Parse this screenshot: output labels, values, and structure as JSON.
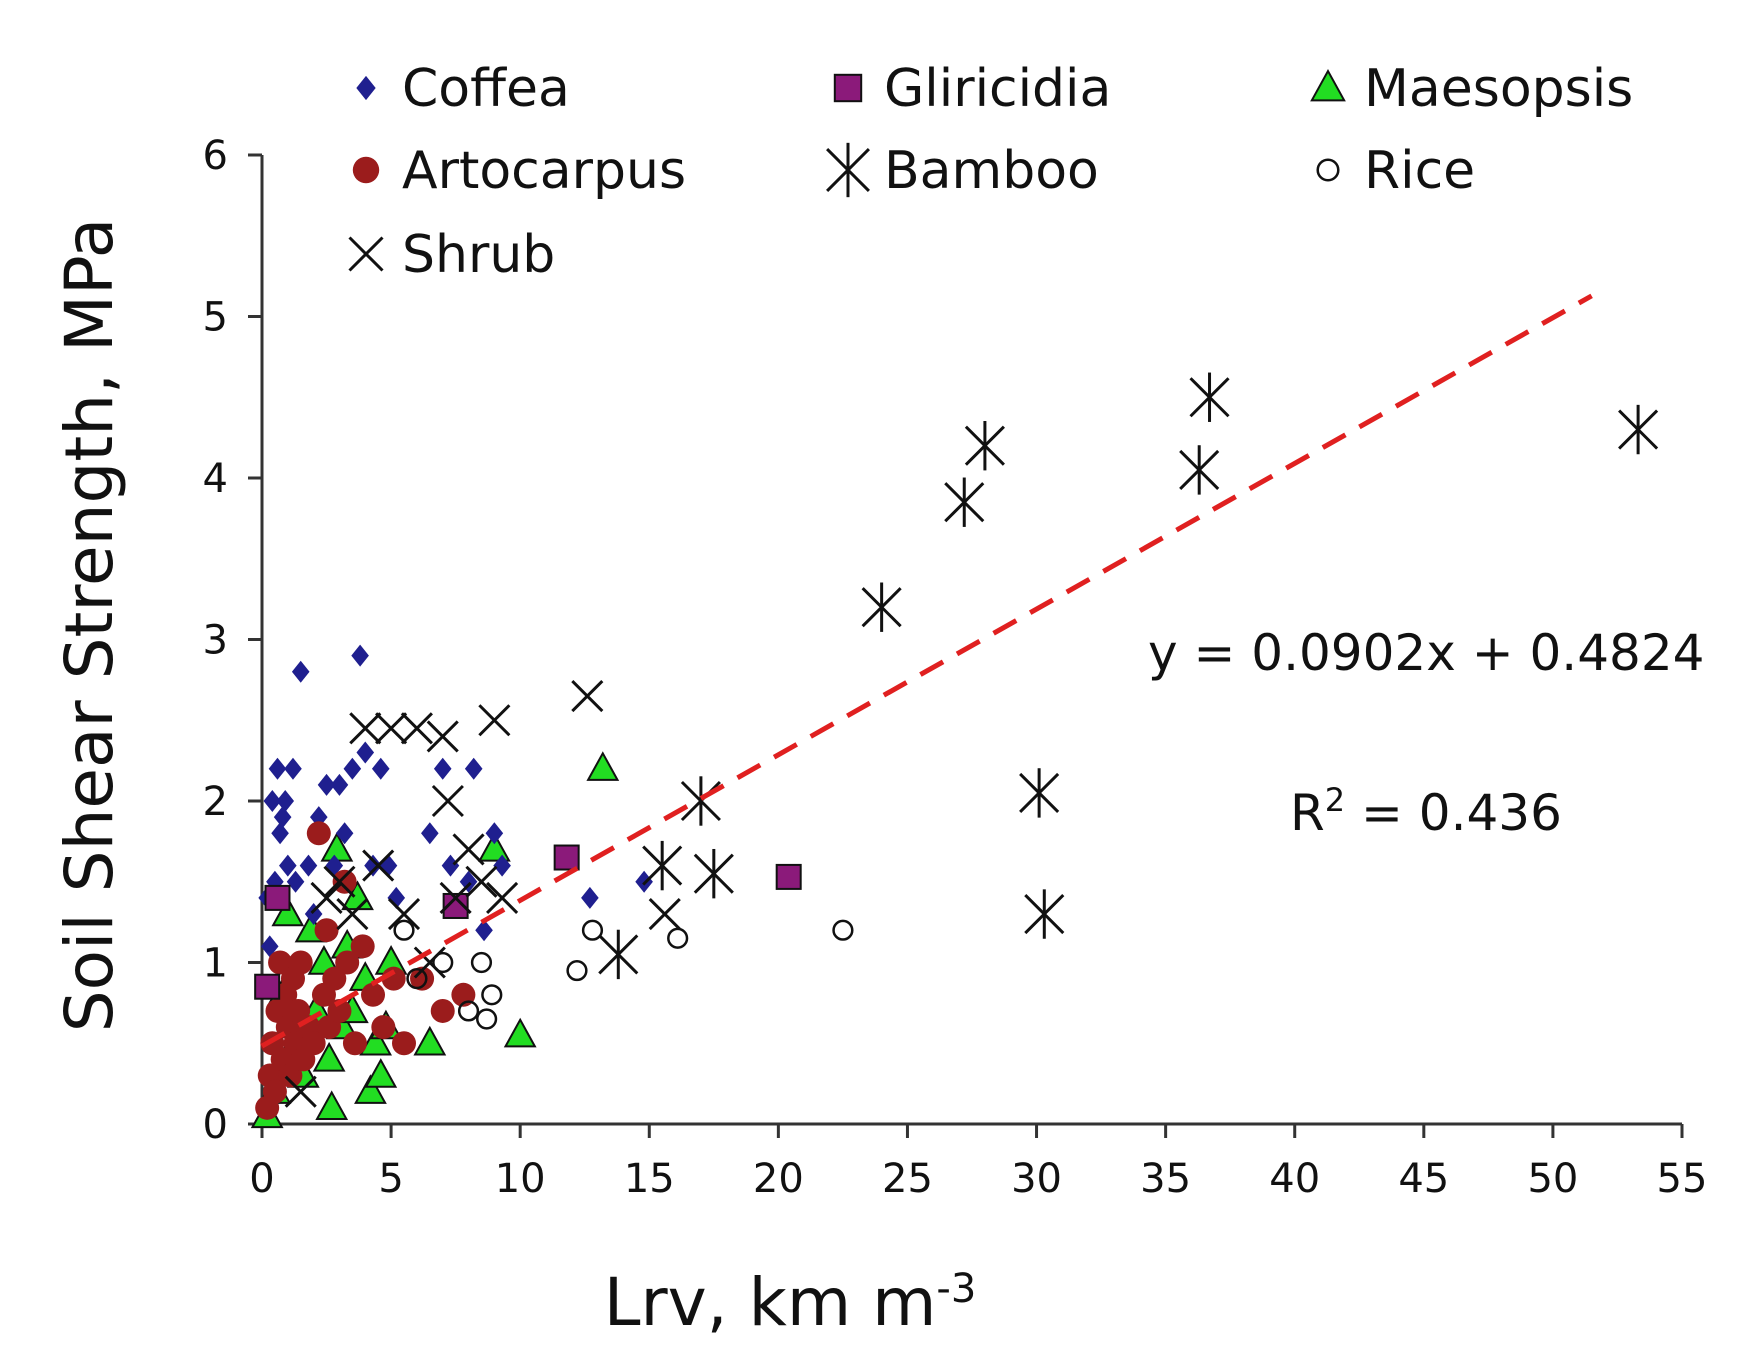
{
  "chart_data": {
    "type": "scatter",
    "title": "",
    "xlabel": "Lrv, km m",
    "xlabel_sup": "-3",
    "ylabel": "Soil Shear Strength, MPa",
    "xlim": [
      0,
      55
    ],
    "ylim": [
      0,
      6
    ],
    "xticks": [
      "0",
      "5",
      "10",
      "15",
      "20",
      "25",
      "30",
      "35",
      "40",
      "45",
      "50",
      "55"
    ],
    "yticks": [
      "0",
      "1",
      "2",
      "3",
      "4",
      "5",
      "6"
    ],
    "grid": false,
    "legend_position": "top",
    "series": [
      {
        "name": "Coffea",
        "marker": "diamond",
        "color": "#1f1f8f",
        "points": [
          [
            0.2,
            1.4
          ],
          [
            0.3,
            1.1
          ],
          [
            0.4,
            2.0
          ],
          [
            0.5,
            1.5
          ],
          [
            0.6,
            2.2
          ],
          [
            0.7,
            1.8
          ],
          [
            0.8,
            1.9
          ],
          [
            0.9,
            2.0
          ],
          [
            1.0,
            1.6
          ],
          [
            1.2,
            2.2
          ],
          [
            1.3,
            1.5
          ],
          [
            1.5,
            2.8
          ],
          [
            1.8,
            1.6
          ],
          [
            2.0,
            1.3
          ],
          [
            2.2,
            1.9
          ],
          [
            2.5,
            2.1
          ],
          [
            2.8,
            1.6
          ],
          [
            3.0,
            2.1
          ],
          [
            3.2,
            1.8
          ],
          [
            3.5,
            2.2
          ],
          [
            3.8,
            2.9
          ],
          [
            4.0,
            2.3
          ],
          [
            4.3,
            1.6
          ],
          [
            4.6,
            2.2
          ],
          [
            4.9,
            1.6
          ],
          [
            5.2,
            1.4
          ],
          [
            6.5,
            1.8
          ],
          [
            7.0,
            2.2
          ],
          [
            7.3,
            1.6
          ],
          [
            8.0,
            1.5
          ],
          [
            8.2,
            2.2
          ],
          [
            8.6,
            1.2
          ],
          [
            9.0,
            1.8
          ],
          [
            9.3,
            1.6
          ],
          [
            12.7,
            1.4
          ],
          [
            14.8,
            1.5
          ]
        ]
      },
      {
        "name": "Gliricidia",
        "marker": "square",
        "color": "#8b1a7a",
        "points": [
          [
            0.2,
            0.85
          ],
          [
            0.6,
            1.4
          ],
          [
            7.5,
            1.35
          ],
          [
            11.8,
            1.65
          ],
          [
            20.4,
            1.53
          ]
        ]
      },
      {
        "name": "Maesopsis",
        "marker": "triangle",
        "color": "#22dd22",
        "points": [
          [
            0.2,
            0.05
          ],
          [
            0.5,
            0.2
          ],
          [
            0.8,
            0.8
          ],
          [
            1.0,
            1.3
          ],
          [
            1.3,
            0.5
          ],
          [
            1.6,
            0.3
          ],
          [
            1.9,
            1.2
          ],
          [
            2.1,
            0.7
          ],
          [
            2.4,
            1.0
          ],
          [
            2.6,
            0.4
          ],
          [
            2.7,
            0.1
          ],
          [
            2.9,
            1.7
          ],
          [
            3.1,
            0.6
          ],
          [
            3.3,
            1.1
          ],
          [
            3.5,
            0.7
          ],
          [
            3.7,
            1.4
          ],
          [
            4.0,
            0.9
          ],
          [
            4.2,
            0.2
          ],
          [
            4.4,
            0.5
          ],
          [
            4.6,
            0.3
          ],
          [
            4.8,
            0.6
          ],
          [
            5.0,
            1.0
          ],
          [
            6.5,
            0.5
          ],
          [
            9.0,
            1.7
          ],
          [
            10.0,
            0.55
          ],
          [
            13.2,
            2.2
          ]
        ]
      },
      {
        "name": "Artocarpus",
        "marker": "circle",
        "color": "#9b1c1c",
        "points": [
          [
            0.2,
            0.1
          ],
          [
            0.3,
            0.3
          ],
          [
            0.4,
            0.5
          ],
          [
            0.5,
            0.2
          ],
          [
            0.6,
            0.7
          ],
          [
            0.7,
            1.0
          ],
          [
            0.8,
            0.4
          ],
          [
            0.9,
            0.8
          ],
          [
            1.0,
            0.6
          ],
          [
            1.1,
            0.3
          ],
          [
            1.2,
            0.9
          ],
          [
            1.3,
            0.5
          ],
          [
            1.4,
            0.7
          ],
          [
            1.6,
            0.4
          ],
          [
            1.8,
            0.6
          ],
          [
            2.0,
            0.5
          ],
          [
            2.2,
            1.8
          ],
          [
            2.4,
            0.8
          ],
          [
            2.6,
            0.6
          ],
          [
            2.8,
            0.9
          ],
          [
            3.0,
            0.7
          ],
          [
            3.3,
            1.0
          ],
          [
            3.6,
            0.5
          ],
          [
            3.9,
            1.1
          ],
          [
            4.3,
            0.8
          ],
          [
            4.7,
            0.6
          ],
          [
            5.1,
            0.9
          ],
          [
            5.5,
            0.5
          ],
          [
            6.2,
            0.9
          ],
          [
            7.0,
            0.7
          ],
          [
            7.8,
            0.8
          ],
          [
            3.2,
            1.5
          ],
          [
            2.5,
            1.2
          ],
          [
            1.5,
            1.0
          ]
        ]
      },
      {
        "name": "Bamboo",
        "marker": "asterisk",
        "color": "#111111",
        "points": [
          [
            13.8,
            1.05
          ],
          [
            15.5,
            1.6
          ],
          [
            17.0,
            2.0
          ],
          [
            17.5,
            1.55
          ],
          [
            24.0,
            3.2
          ],
          [
            27.2,
            3.85
          ],
          [
            28.0,
            4.2
          ],
          [
            30.1,
            2.05
          ],
          [
            30.3,
            1.3
          ],
          [
            36.3,
            4.05
          ],
          [
            36.7,
            4.5
          ],
          [
            53.3,
            4.3
          ]
        ]
      },
      {
        "name": "Rice",
        "marker": "open-circle",
        "color": "#111111",
        "points": [
          [
            5.5,
            1.2
          ],
          [
            6.0,
            0.9
          ],
          [
            7.0,
            1.0
          ],
          [
            8.0,
            0.7
          ],
          [
            8.5,
            1.0
          ],
          [
            8.7,
            0.65
          ],
          [
            8.9,
            0.8
          ],
          [
            12.2,
            0.95
          ],
          [
            12.8,
            1.2
          ],
          [
            16.1,
            1.15
          ],
          [
            22.5,
            1.2
          ]
        ]
      },
      {
        "name": "Shrub",
        "marker": "x",
        "color": "#111111",
        "points": [
          [
            1.5,
            0.2
          ],
          [
            2.5,
            1.4
          ],
          [
            3.0,
            1.5
          ],
          [
            3.5,
            1.3
          ],
          [
            4.0,
            2.45
          ],
          [
            4.5,
            1.6
          ],
          [
            5.0,
            2.45
          ],
          [
            5.5,
            1.3
          ],
          [
            6.0,
            2.45
          ],
          [
            6.5,
            1.0
          ],
          [
            7.0,
            2.4
          ],
          [
            7.2,
            2.0
          ],
          [
            7.5,
            1.4
          ],
          [
            8.0,
            1.7
          ],
          [
            8.5,
            1.5
          ],
          [
            9.0,
            2.5
          ],
          [
            9.3,
            1.4
          ],
          [
            12.6,
            2.65
          ],
          [
            15.6,
            1.3
          ]
        ]
      }
    ],
    "trendline": {
      "slope": 0.0902,
      "intercept": 0.4824,
      "x_range": [
        0,
        51.5
      ],
      "style": "dashed",
      "color": "#e02020",
      "equation_label": "y = 0.0902x + 0.4824",
      "r2_label_prefix": "R",
      "r2_label_sup": "2",
      "r2_label_value": " = 0.436"
    }
  }
}
